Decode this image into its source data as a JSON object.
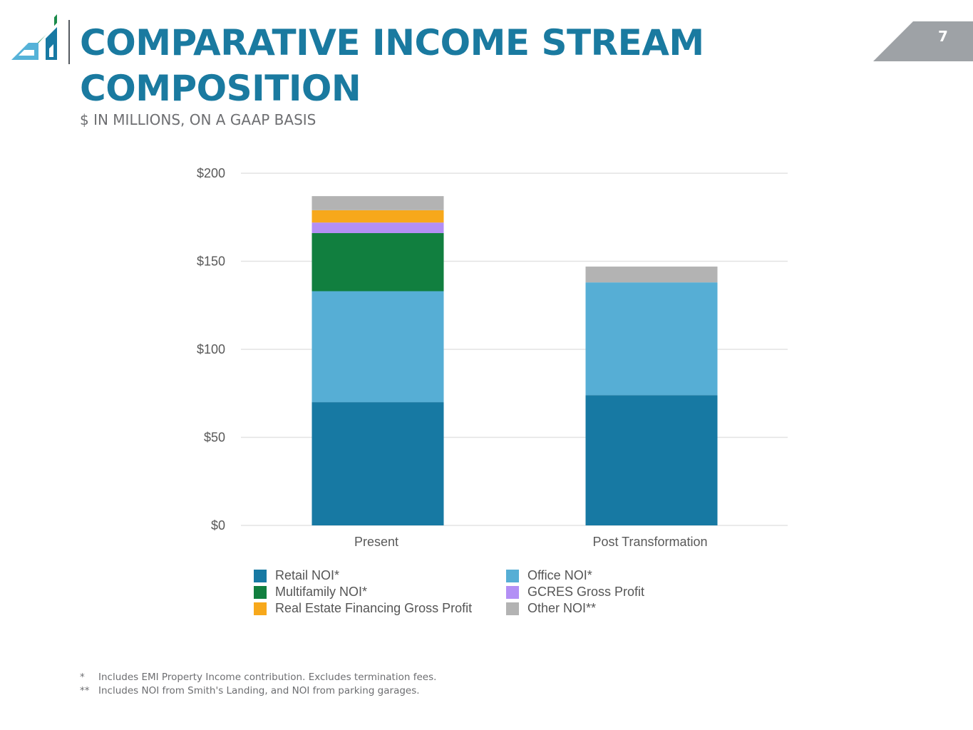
{
  "header": {
    "title": "COMPARATIVE INCOME STREAM COMPOSITION",
    "subtitle": "$ IN MILLIONS, ON A GAAP BASIS",
    "page_number": "7"
  },
  "colors": {
    "title": "#1a7aa0",
    "retail": "#1779a3",
    "office": "#56aed5",
    "multifamily": "#117f3f",
    "gcres": "#b38ff5",
    "financing": "#f7a81b",
    "other": "#b3b3b3"
  },
  "chart_data": {
    "type": "bar",
    "stacked": true,
    "categories": [
      "Present",
      "Post Transformation"
    ],
    "series": [
      {
        "name": "Retail NOI*",
        "color": "#1779a3",
        "values": [
          70,
          74
        ]
      },
      {
        "name": "Office NOI*",
        "color": "#56aed5",
        "values": [
          63,
          64
        ]
      },
      {
        "name": "Multifamily NOI*",
        "color": "#117f3f",
        "values": [
          33,
          0
        ]
      },
      {
        "name": "GCRES Gross Profit",
        "color": "#b38ff5",
        "values": [
          6,
          0
        ]
      },
      {
        "name": "Real Estate Financing Gross Profit",
        "color": "#f7a81b",
        "values": [
          7,
          0
        ]
      },
      {
        "name": "Other NOI**",
        "color": "#b3b3b3",
        "values": [
          8,
          9
        ]
      }
    ],
    "ylim": [
      0,
      200
    ],
    "yticks": [
      0,
      50,
      100,
      150,
      200
    ],
    "ytick_labels": [
      "$0",
      "$50",
      "$100",
      "$150",
      "$200"
    ],
    "grid": true,
    "legend_placement": "bottom",
    "legend_order": [
      "Retail NOI*",
      "Office NOI*",
      "Multifamily NOI*",
      "GCRES Gross Profit",
      "Real Estate Financing Gross Profit",
      "Other NOI**"
    ]
  },
  "footnotes": [
    {
      "mark": "*",
      "text": "Includes EMI Property Income contribution. Excludes termination fees."
    },
    {
      "mark": "**",
      "text": "Includes NOI from Smith's Landing, and NOI from parking garages."
    }
  ]
}
